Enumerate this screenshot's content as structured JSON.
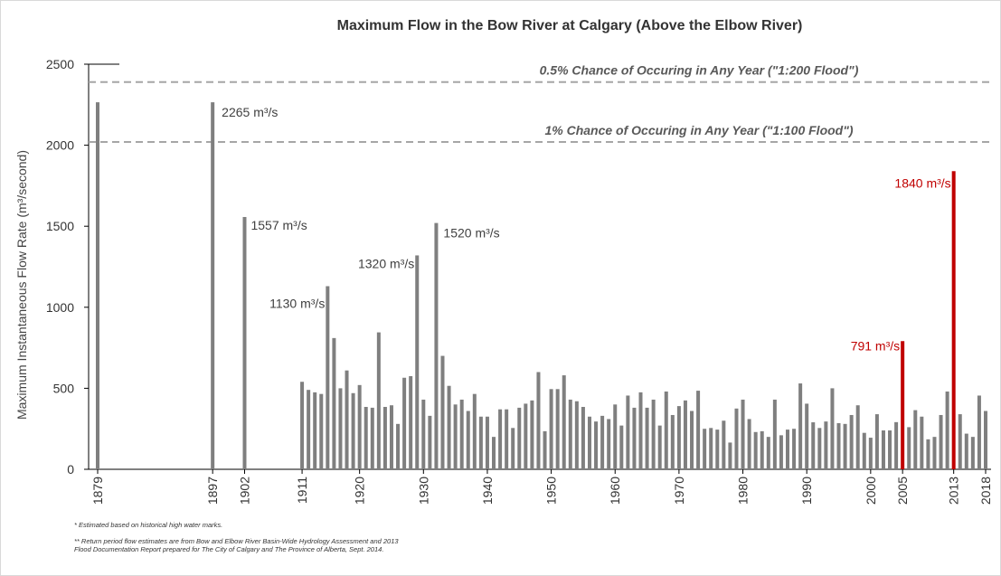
{
  "chart_data": {
    "type": "bar",
    "title": "Maximum Flow in the Bow River at Calgary (Above the Elbow River)",
    "ylabel": "Maximum Instantaneous Flow Rate (m³/second)",
    "xlabel": "",
    "ylim": [
      0,
      2500
    ],
    "yticks": [
      0,
      500,
      1000,
      1500,
      2000,
      2500
    ],
    "xlim": [
      1879,
      2018
    ],
    "xticks": [
      1879,
      1897,
      1902,
      1911,
      1920,
      1930,
      1940,
      1950,
      1960,
      1970,
      1980,
      1990,
      2000,
      2005,
      2013,
      2018
    ],
    "grid": false,
    "legend": "none",
    "bar_color": "#7f7f7f",
    "highlight_color": "#c00000",
    "reference_lines": [
      {
        "value": 2390,
        "label": "0.5% Chance of Occuring in Any Year (\"1:200 Flood\")"
      },
      {
        "value": 2020,
        "label": "1% Chance of Occuring  in Any Year (\"1:100 Flood\")"
      }
    ],
    "data": [
      {
        "year": 1879,
        "value": 2265
      },
      {
        "year": 1897,
        "value": 2265,
        "label": "2265 m³/s"
      },
      {
        "year": 1902,
        "value": 1557,
        "label": "1557 m³/s"
      },
      {
        "year": 1911,
        "value": 540
      },
      {
        "year": 1912,
        "value": 490
      },
      {
        "year": 1913,
        "value": 475
      },
      {
        "year": 1914,
        "value": 465
      },
      {
        "year": 1915,
        "value": 1130,
        "label": "1130 m³/s"
      },
      {
        "year": 1916,
        "value": 810
      },
      {
        "year": 1917,
        "value": 500
      },
      {
        "year": 1918,
        "value": 610
      },
      {
        "year": 1919,
        "value": 470
      },
      {
        "year": 1920,
        "value": 520
      },
      {
        "year": 1921,
        "value": 385
      },
      {
        "year": 1922,
        "value": 380
      },
      {
        "year": 1923,
        "value": 845
      },
      {
        "year": 1924,
        "value": 385
      },
      {
        "year": 1925,
        "value": 395
      },
      {
        "year": 1926,
        "value": 280
      },
      {
        "year": 1927,
        "value": 565
      },
      {
        "year": 1928,
        "value": 575
      },
      {
        "year": 1929,
        "value": 1320,
        "label": "1320 m³/s"
      },
      {
        "year": 1930,
        "value": 430
      },
      {
        "year": 1931,
        "value": 330
      },
      {
        "year": 1932,
        "value": 1520,
        "label": "1520 m³/s"
      },
      {
        "year": 1933,
        "value": 700
      },
      {
        "year": 1934,
        "value": 515
      },
      {
        "year": 1935,
        "value": 400
      },
      {
        "year": 1936,
        "value": 430
      },
      {
        "year": 1937,
        "value": 360
      },
      {
        "year": 1938,
        "value": 465
      },
      {
        "year": 1939,
        "value": 325
      },
      {
        "year": 1940,
        "value": 325
      },
      {
        "year": 1941,
        "value": 200
      },
      {
        "year": 1942,
        "value": 370
      },
      {
        "year": 1943,
        "value": 370
      },
      {
        "year": 1944,
        "value": 255
      },
      {
        "year": 1945,
        "value": 380
      },
      {
        "year": 1946,
        "value": 405
      },
      {
        "year": 1947,
        "value": 425
      },
      {
        "year": 1948,
        "value": 600
      },
      {
        "year": 1949,
        "value": 235
      },
      {
        "year": 1950,
        "value": 495
      },
      {
        "year": 1951,
        "value": 495
      },
      {
        "year": 1952,
        "value": 580
      },
      {
        "year": 1953,
        "value": 430
      },
      {
        "year": 1954,
        "value": 420
      },
      {
        "year": 1955,
        "value": 385
      },
      {
        "year": 1956,
        "value": 325
      },
      {
        "year": 1957,
        "value": 295
      },
      {
        "year": 1958,
        "value": 330
      },
      {
        "year": 1959,
        "value": 310
      },
      {
        "year": 1960,
        "value": 400
      },
      {
        "year": 1961,
        "value": 270
      },
      {
        "year": 1962,
        "value": 455
      },
      {
        "year": 1963,
        "value": 380
      },
      {
        "year": 1964,
        "value": 475
      },
      {
        "year": 1965,
        "value": 380
      },
      {
        "year": 1966,
        "value": 430
      },
      {
        "year": 1967,
        "value": 270
      },
      {
        "year": 1968,
        "value": 480
      },
      {
        "year": 1969,
        "value": 335
      },
      {
        "year": 1970,
        "value": 390
      },
      {
        "year": 1971,
        "value": 425
      },
      {
        "year": 1972,
        "value": 360
      },
      {
        "year": 1973,
        "value": 485
      },
      {
        "year": 1974,
        "value": 250
      },
      {
        "year": 1975,
        "value": 255
      },
      {
        "year": 1976,
        "value": 245
      },
      {
        "year": 1977,
        "value": 300
      },
      {
        "year": 1978,
        "value": 165
      },
      {
        "year": 1979,
        "value": 375
      },
      {
        "year": 1980,
        "value": 430
      },
      {
        "year": 1981,
        "value": 310
      },
      {
        "year": 1982,
        "value": 230
      },
      {
        "year": 1983,
        "value": 235
      },
      {
        "year": 1984,
        "value": 200
      },
      {
        "year": 1985,
        "value": 430
      },
      {
        "year": 1986,
        "value": 210
      },
      {
        "year": 1987,
        "value": 245
      },
      {
        "year": 1988,
        "value": 250
      },
      {
        "year": 1989,
        "value": 530
      },
      {
        "year": 1990,
        "value": 405
      },
      {
        "year": 1991,
        "value": 290
      },
      {
        "year": 1992,
        "value": 255
      },
      {
        "year": 1993,
        "value": 295
      },
      {
        "year": 1994,
        "value": 500
      },
      {
        "year": 1995,
        "value": 285
      },
      {
        "year": 1996,
        "value": 280
      },
      {
        "year": 1997,
        "value": 335
      },
      {
        "year": 1998,
        "value": 395
      },
      {
        "year": 1999,
        "value": 225
      },
      {
        "year": 2000,
        "value": 195
      },
      {
        "year": 2001,
        "value": 340
      },
      {
        "year": 2002,
        "value": 240
      },
      {
        "year": 2003,
        "value": 240
      },
      {
        "year": 2004,
        "value": 291
      },
      {
        "year": 2005,
        "value": 791,
        "label": "791 m³/s",
        "highlight": true
      },
      {
        "year": 2006,
        "value": 260
      },
      {
        "year": 2007,
        "value": 365
      },
      {
        "year": 2008,
        "value": 325
      },
      {
        "year": 2009,
        "value": 185
      },
      {
        "year": 2010,
        "value": 200
      },
      {
        "year": 2011,
        "value": 335
      },
      {
        "year": 2012,
        "value": 480
      },
      {
        "year": 2013,
        "value": 1840,
        "label": "1840 m³/s",
        "highlight": true
      },
      {
        "year": 2014,
        "value": 340
      },
      {
        "year": 2015,
        "value": 220
      },
      {
        "year": 2016,
        "value": 200
      },
      {
        "year": 2017,
        "value": 455
      },
      {
        "year": 2018,
        "value": 360
      }
    ]
  },
  "footnotes": [
    "*  Estimated based on historical high water marks.",
    "**  Return period flow estimates are from Bow and Elbow River Basin-Wide Hydrology Assessment and 2013",
    "Flood Documentation Report prepared for The City of Calgary and The Province of Alberta, Sept. 2014."
  ]
}
